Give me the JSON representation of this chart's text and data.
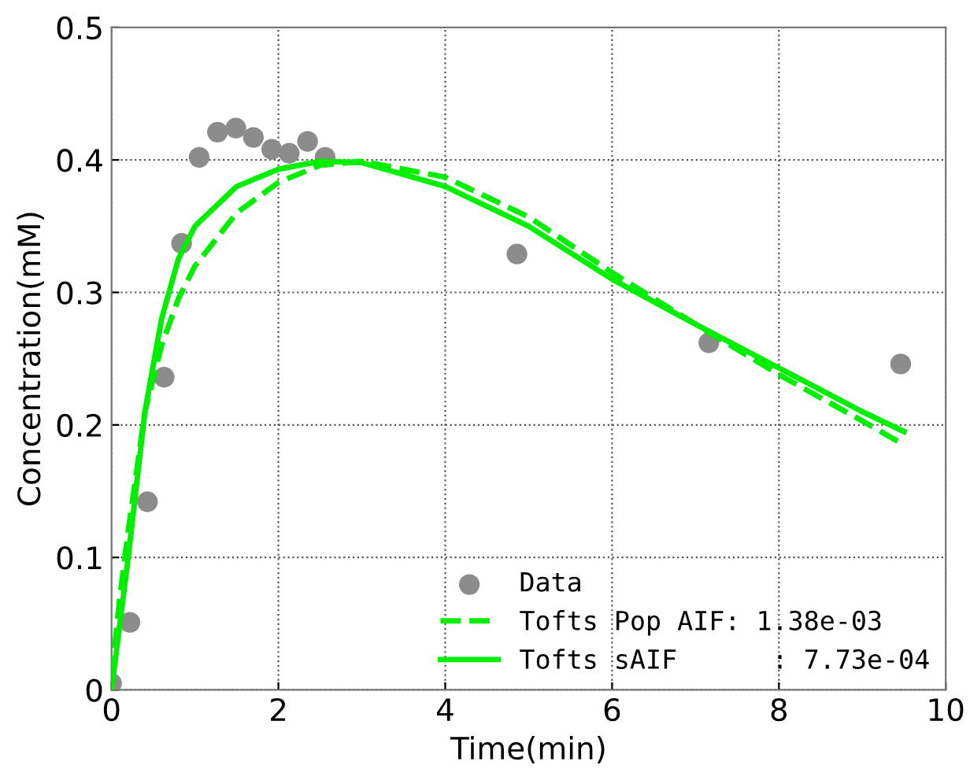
{
  "chart_data": {
    "type": "line",
    "xlabel": "Time(min)",
    "ylabel": "Concentration(mM)",
    "xlim": [
      0,
      10
    ],
    "ylim": [
      0,
      0.5
    ],
    "xticks": [
      0,
      2,
      4,
      6,
      8,
      10
    ],
    "yticks": [
      0,
      0.1,
      0.2,
      0.3,
      0.4,
      0.5
    ],
    "grid": true,
    "legend": "bottom right",
    "series": [
      {
        "name": "Data",
        "type": "scatter",
        "marker": "circle",
        "color": "#8c8c8c",
        "x": [
          0,
          0.22,
          0.43,
          0.63,
          0.84,
          1.05,
          1.27,
          1.49,
          1.7,
          1.92,
          2.13,
          2.35,
          2.56,
          4.86,
          7.16,
          9.46
        ],
        "values": [
          0.005,
          0.051,
          0.142,
          0.236,
          0.337,
          0.402,
          0.421,
          0.424,
          0.417,
          0.408,
          0.405,
          0.414,
          0.402,
          0.329,
          0.262,
          0.246
        ]
      },
      {
        "name": "Tofts Pop AIF: 1.38e-03",
        "line_style": "dashed",
        "color": "#00ee00",
        "x": [
          0,
          0.1,
          0.2,
          0.4,
          0.6,
          0.8,
          1.0,
          1.5,
          2,
          2.5,
          3,
          4,
          5,
          6,
          7,
          8,
          9,
          9.5
        ],
        "values": [
          0.01,
          0.07,
          0.12,
          0.21,
          0.26,
          0.295,
          0.32,
          0.36,
          0.383,
          0.396,
          0.399,
          0.387,
          0.357,
          0.315,
          0.276,
          0.238,
          0.203,
          0.185
        ]
      },
      {
        "name": "Tofts sAIF      : 7.73e-04",
        "line_style": "solid",
        "color": "#00ee00",
        "x": [
          0,
          0.1,
          0.2,
          0.4,
          0.6,
          0.8,
          1.0,
          1.5,
          2,
          2.5,
          3,
          4,
          5,
          6,
          7,
          8,
          9,
          9.5
        ],
        "values": [
          0,
          0.05,
          0.1,
          0.21,
          0.28,
          0.325,
          0.35,
          0.38,
          0.393,
          0.399,
          0.398,
          0.38,
          0.35,
          0.31,
          0.276,
          0.243,
          0.21,
          0.195
        ]
      }
    ]
  }
}
